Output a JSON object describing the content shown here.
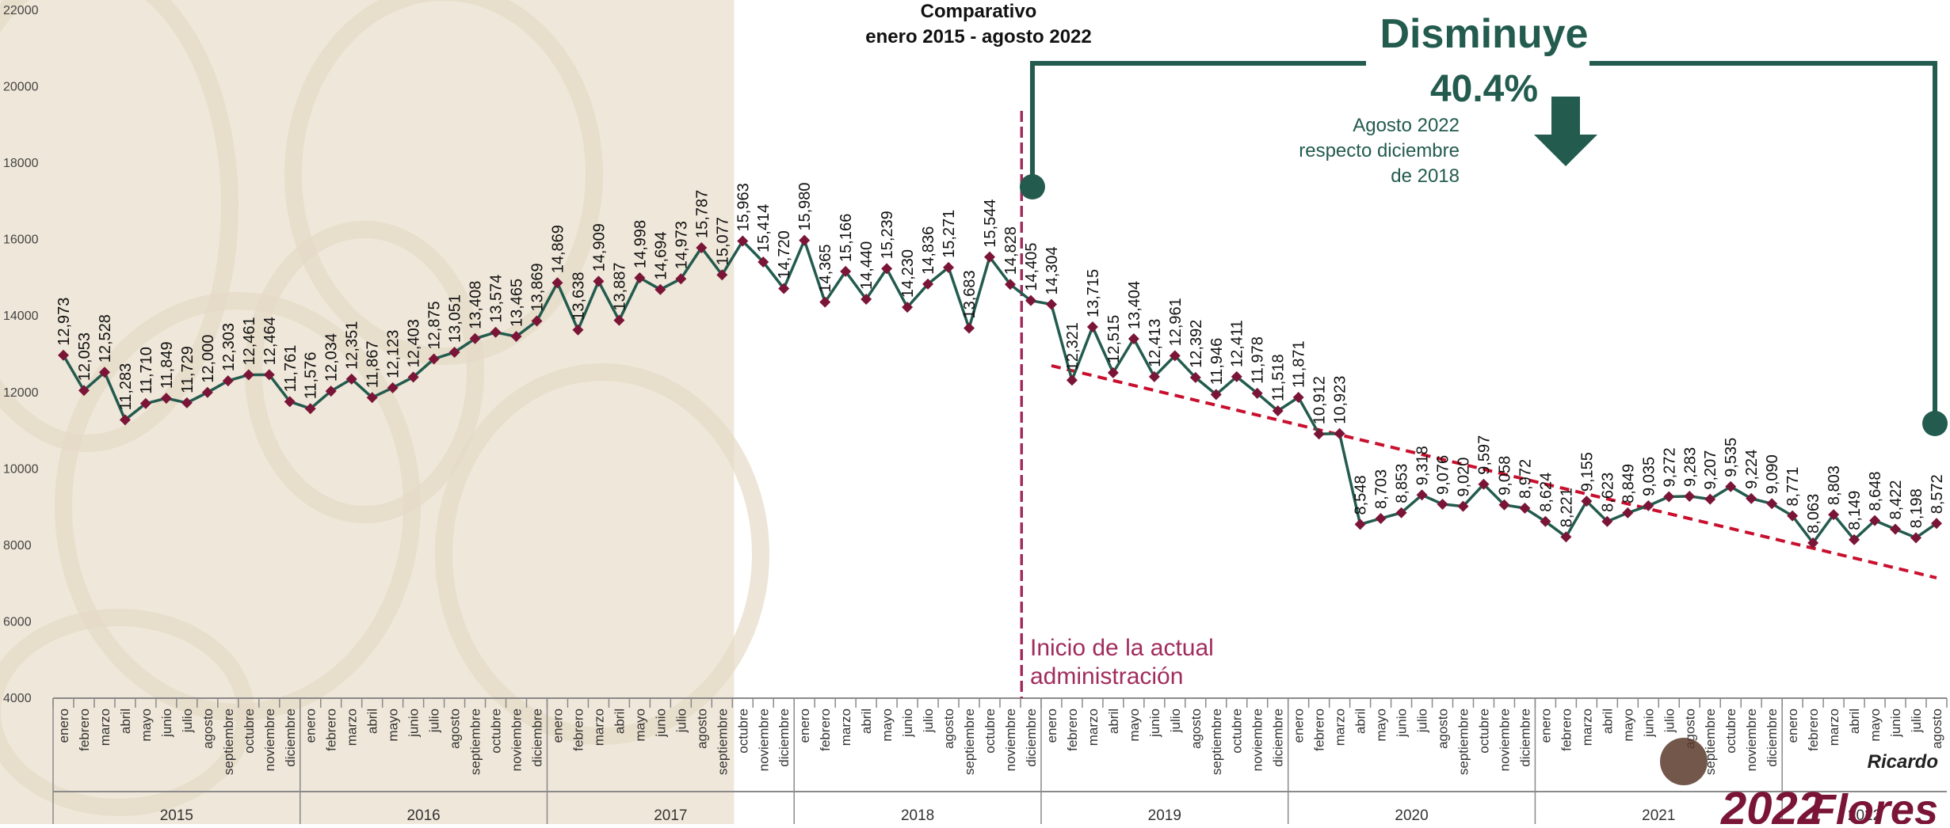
{
  "colors": {
    "line": "#235b4e",
    "marker": "#7a1537",
    "trend": "#c8102e",
    "accent": "#235b4e",
    "admin": "#a02c5d",
    "beige": "#efe7d9",
    "axis": "#8a8a8a"
  },
  "header": {
    "title_line1": "Comparativo",
    "title_line2": "enero 2015 - agosto 2022"
  },
  "callout": {
    "headline": "Disminuye",
    "percent": "40.4%",
    "note_line1": "Agosto 2022",
    "note_line2": "respecto diciembre",
    "note_line3": "de 2018"
  },
  "admin_label": {
    "line1": "Inicio de la actual",
    "line2": "administración"
  },
  "brand": {
    "year": "2022",
    "name_line1": "Ricardo",
    "name_line2": "Flores"
  },
  "chart_data": {
    "type": "line",
    "title": "Comparativo enero 2015 - agosto 2022",
    "xlabel": "",
    "ylabel": "",
    "ylim": [
      4000,
      22000
    ],
    "yticks": [
      4000,
      6000,
      8000,
      10000,
      12000,
      14000,
      16000,
      18000,
      20000,
      22000
    ],
    "grid": false,
    "months": [
      "enero",
      "febrero",
      "marzo",
      "abril",
      "mayo",
      "junio",
      "julio",
      "agosto",
      "septiembre",
      "octubre",
      "noviembre",
      "diciembre"
    ],
    "years": [
      "2015",
      "2016",
      "2017",
      "2018",
      "2019",
      "2020",
      "2021",
      "2022"
    ],
    "values": [
      12973,
      12053,
      12528,
      11283,
      11710,
      11849,
      11729,
      12000,
      12303,
      12461,
      12464,
      11761,
      11576,
      12034,
      12351,
      11867,
      12123,
      12403,
      12875,
      13051,
      13408,
      13574,
      13465,
      13869,
      14869,
      13638,
      14909,
      13887,
      14998,
      14694,
      14973,
      15787,
      15077,
      15963,
      15414,
      14720,
      15980,
      14365,
      15166,
      14440,
      15239,
      14230,
      14836,
      15271,
      13683,
      15544,
      14828,
      14405,
      14304,
      12321,
      13715,
      12515,
      13404,
      12413,
      12961,
      12392,
      11946,
      12411,
      11978,
      11518,
      11871,
      10912,
      10923,
      8548,
      8703,
      8853,
      9318,
      9076,
      9020,
      9597,
      9058,
      8972,
      8624,
      8221,
      9155,
      8623,
      8849,
      9035,
      9272,
      9283,
      9207,
      9535,
      9224,
      9090,
      8771,
      8063,
      8803,
      8149,
      8648,
      8422,
      8198,
      8572
    ],
    "labels": [
      "12,973",
      "12,053",
      "12,528",
      "11,283",
      "11,710",
      "11,849",
      "11,729",
      "12,000",
      "12,303",
      "12,461",
      "12,464",
      "11,761",
      "11,576",
      "12,034",
      "12,351",
      "11,867",
      "12,123",
      "12,403",
      "12,875",
      "13,051",
      "13,408",
      "13,574",
      "13,465",
      "13,869",
      "14,869",
      "13,638",
      "14,909",
      "13,887",
      "14,998",
      "14,694",
      "14,973",
      "15,787",
      "15,077",
      "15,963",
      "15,414",
      "14,720",
      "15,980",
      "14,365",
      "15,166",
      "14,440",
      "15,239",
      "14,230",
      "14,836",
      "15,271",
      "13,683",
      "15,544",
      "14,828",
      "14,405",
      "14,304",
      "12,321",
      "13,715",
      "12,515",
      "13,404",
      "12,413",
      "12,961",
      "12,392",
      "11,946",
      "12,411",
      "11,978",
      "11,518",
      "11,871",
      "10,912",
      "10,923",
      "8,548",
      "8,703",
      "8,853",
      "9,318",
      "9,076",
      "9,020",
      "9,597",
      "9,058",
      "8,972",
      "8,624",
      "8,221",
      "9,155",
      "8,623",
      "8,849",
      "9,035",
      "9,272",
      "9,283",
      "9,207",
      "9,535",
      "9,224",
      "9,090",
      "8,771",
      "8,063",
      "8,803",
      "8,149",
      "8,648",
      "8,422",
      "8,198",
      "8,572"
    ],
    "admin_start_index": 47,
    "trend": {
      "from_index": 48,
      "from_value": 12700,
      "to_index": 91,
      "to_value": 7150
    },
    "shaded_range": {
      "from_index": 0,
      "to_index": 33
    }
  }
}
